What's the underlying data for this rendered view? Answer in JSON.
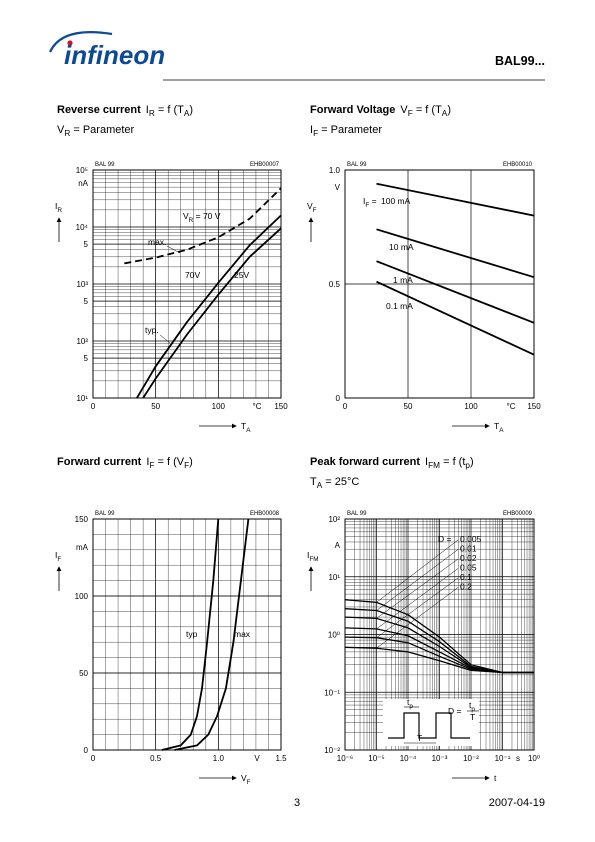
{
  "header": {
    "logo": "infineon",
    "part": "BAL99..."
  },
  "chart_data": [
    {
      "type": "line",
      "title": "Reverse current",
      "formula": [
        "I",
        "R",
        " = f (T",
        "A",
        ")"
      ],
      "subtitle": [
        "V",
        "R",
        " = Parameter"
      ],
      "id_left": "BAL 99",
      "id_right": "EHB00007",
      "y_label": [
        "I",
        "R"
      ],
      "y_unit": "nA",
      "x_label": [
        "T",
        "A"
      ],
      "x_unit": "°C",
      "log_y": true,
      "log_x": false,
      "grid": true,
      "minor_grid": true,
      "color": "#000000",
      "xlim": [
        0,
        150
      ],
      "ylim": [
        10,
        100000
      ],
      "xticks": [
        0,
        50,
        100,
        150
      ],
      "yticks": [
        {
          "value": 10,
          "label": "10¹"
        },
        {
          "value": 50,
          "label": "5"
        },
        {
          "value": 100,
          "label": "10²"
        },
        {
          "value": 500,
          "label": "5"
        },
        {
          "value": 1000,
          "label": "10³"
        },
        {
          "value": 5000,
          "label": "5"
        },
        {
          "value": 10000,
          "label": "10⁴"
        },
        {
          "value": 100000,
          "label": "10⁵"
        }
      ],
      "series": [
        {
          "name": "max.",
          "style": "dashed",
          "x": [
            25,
            50,
            75,
            100,
            125,
            150
          ],
          "values": [
            2300,
            2900,
            4000,
            6600,
            14000,
            48000
          ]
        },
        {
          "name": "70V",
          "style": "solid",
          "x": [
            35,
            50,
            75,
            100,
            125,
            150
          ],
          "values": [
            10,
            36,
            215,
            1050,
            4800,
            16000
          ]
        },
        {
          "name": "25V",
          "style": "solid",
          "x": [
            40,
            50,
            75,
            100,
            125,
            150
          ],
          "values": [
            10,
            22,
            130,
            650,
            3000,
            9500
          ]
        }
      ],
      "annotations": [
        [
          "V",
          "R",
          " = 70 V"
        ],
        "typ."
      ]
    },
    {
      "type": "line",
      "title": "Forward Voltage",
      "formula": [
        "V",
        "F",
        " = f (T",
        "A",
        ")"
      ],
      "subtitle": [
        "I",
        "F",
        " = Parameter"
      ],
      "id_left": "BAL 99",
      "id_right": "EHB00010",
      "y_label": [
        "V",
        "F"
      ],
      "y_unit": "V",
      "x_label": [
        "T",
        "A"
      ],
      "x_unit": "°C",
      "log_y": false,
      "log_x": false,
      "grid": true,
      "minor_grid": false,
      "color": "#000000",
      "xlim": [
        0,
        150
      ],
      "ylim": [
        0,
        1
      ],
      "xticks": [
        0,
        50,
        100,
        150
      ],
      "yticks": [
        0,
        0.5,
        {
          "value": 1,
          "label": "1.0"
        }
      ],
      "series": [
        {
          "name": "100 mA",
          "style": "solid",
          "x": [
            25,
            150
          ],
          "values": [
            0.94,
            0.8
          ]
        },
        {
          "name": "10 mA",
          "style": "solid",
          "x": [
            25,
            150
          ],
          "values": [
            0.74,
            0.53
          ]
        },
        {
          "name": "1 mA",
          "style": "solid",
          "x": [
            25,
            150
          ],
          "values": [
            0.6,
            0.33
          ]
        },
        {
          "name": "0.1 mA",
          "style": "solid",
          "x": [
            25,
            150
          ],
          "values": [
            0.51,
            0.19
          ]
        }
      ],
      "annotations": [
        [
          "I",
          "F",
          " = "
        ]
      ]
    },
    {
      "type": "line",
      "title": "Forward current",
      "formula": [
        "I",
        "F",
        " = f (V",
        "F",
        ")"
      ],
      "id_left": "BAL 99",
      "id_right": "EHB00008",
      "y_label": [
        "I",
        "F"
      ],
      "y_unit": "mA",
      "x_label": [
        "V",
        "F"
      ],
      "x_unit": "V",
      "log_y": false,
      "log_x": false,
      "grid": true,
      "minor_grid": true,
      "color": "#000000",
      "xlim": [
        0,
        1.5
      ],
      "ylim": [
        0,
        150
      ],
      "xticks": [
        0,
        0.5,
        {
          "value": 1,
          "label": "1.0"
        },
        1.5
      ],
      "yticks": [
        0,
        50,
        100,
        150
      ],
      "series": [
        {
          "name": "typ",
          "style": "solid",
          "x": [
            0.55,
            0.7,
            0.78,
            0.83,
            0.87,
            0.91,
            0.96,
            1.0
          ],
          "values": [
            0,
            3,
            10,
            22,
            40,
            70,
            110,
            150
          ]
        },
        {
          "name": "max",
          "style": "solid",
          "x": [
            0.65,
            0.83,
            0.92,
            0.99,
            1.06,
            1.12,
            1.18,
            1.24
          ],
          "values": [
            0,
            3,
            10,
            22,
            40,
            70,
            110,
            150
          ]
        }
      ]
    },
    {
      "type": "line",
      "title": "Peak forward current",
      "formula": [
        "I",
        "FM",
        " = f (t",
        "p",
        ")"
      ],
      "subtitle": [
        "T",
        "A",
        " = 25°C"
      ],
      "id_left": "BAL 99",
      "id_right": "EHB00009",
      "y_label": [
        "I",
        "FM"
      ],
      "y_unit": "A",
      "x_label": [
        "t"
      ],
      "x_unit": "s",
      "log_y": true,
      "log_x": true,
      "grid": true,
      "minor_grid": true,
      "color": "#000000",
      "xlim": [
        1e-06,
        1
      ],
      "ylim": [
        0.01,
        100
      ],
      "xticks": [
        {
          "value": 1e-06,
          "label": "10⁻⁶"
        },
        {
          "value": 1e-05,
          "label": "10⁻⁵"
        },
        {
          "value": 0.0001,
          "label": "10⁻⁴"
        },
        {
          "value": 0.001,
          "label": "10⁻³"
        },
        {
          "value": 0.01,
          "label": "10⁻²"
        },
        {
          "value": 0.1,
          "label": "10⁻¹"
        },
        {
          "value": 1,
          "label": "10⁰"
        }
      ],
      "yticks": [
        {
          "value": 0.01,
          "label": "10⁻²"
        },
        {
          "value": 0.1,
          "label": "10⁻¹"
        },
        {
          "value": 1,
          "label": "10⁰"
        },
        {
          "value": 10,
          "label": "10¹"
        },
        {
          "value": 100,
          "label": "10²"
        }
      ],
      "series": [
        {
          "name": "0.005",
          "style": "solid",
          "x": [
            1e-06,
            1e-05,
            0.0001,
            0.001,
            0.01,
            0.1,
            1
          ],
          "values": [
            4,
            3.6,
            2.2,
            0.9,
            0.3,
            0.22,
            0.22
          ]
        },
        {
          "name": "0.01",
          "style": "solid",
          "x": [
            1e-06,
            1e-05,
            0.0001,
            0.001,
            0.01,
            0.1,
            1
          ],
          "values": [
            2.8,
            2.6,
            1.7,
            0.75,
            0.28,
            0.22,
            0.22
          ]
        },
        {
          "name": "0.02",
          "style": "solid",
          "x": [
            1e-06,
            1e-05,
            0.0001,
            0.001,
            0.01,
            0.1,
            1
          ],
          "values": [
            2,
            1.9,
            1.3,
            0.62,
            0.27,
            0.22,
            0.22
          ]
        },
        {
          "name": "0.05",
          "style": "solid",
          "x": [
            1e-06,
            1e-05,
            0.0001,
            0.001,
            0.01,
            0.1,
            1
          ],
          "values": [
            1.3,
            1.25,
            0.95,
            0.5,
            0.26,
            0.22,
            0.22
          ]
        },
        {
          "name": "0.1",
          "style": "solid",
          "x": [
            1e-06,
            1e-05,
            0.0001,
            0.001,
            0.01,
            0.1,
            1
          ],
          "values": [
            0.9,
            0.88,
            0.72,
            0.42,
            0.25,
            0.22,
            0.22
          ]
        },
        {
          "name": "0.2",
          "style": "solid",
          "x": [
            1e-06,
            1e-05,
            0.0001,
            0.001,
            0.01,
            0.1,
            1
          ],
          "values": [
            0.6,
            0.58,
            0.5,
            0.35,
            0.24,
            0.22,
            0.22
          ]
        }
      ],
      "annotations": [
        "D ="
      ],
      "inset": {
        "pulse": [
          "t",
          "p"
        ],
        "duty": "D =",
        "period": "T"
      }
    }
  ],
  "footer": {
    "page": 3,
    "date": "2007-04-19"
  }
}
